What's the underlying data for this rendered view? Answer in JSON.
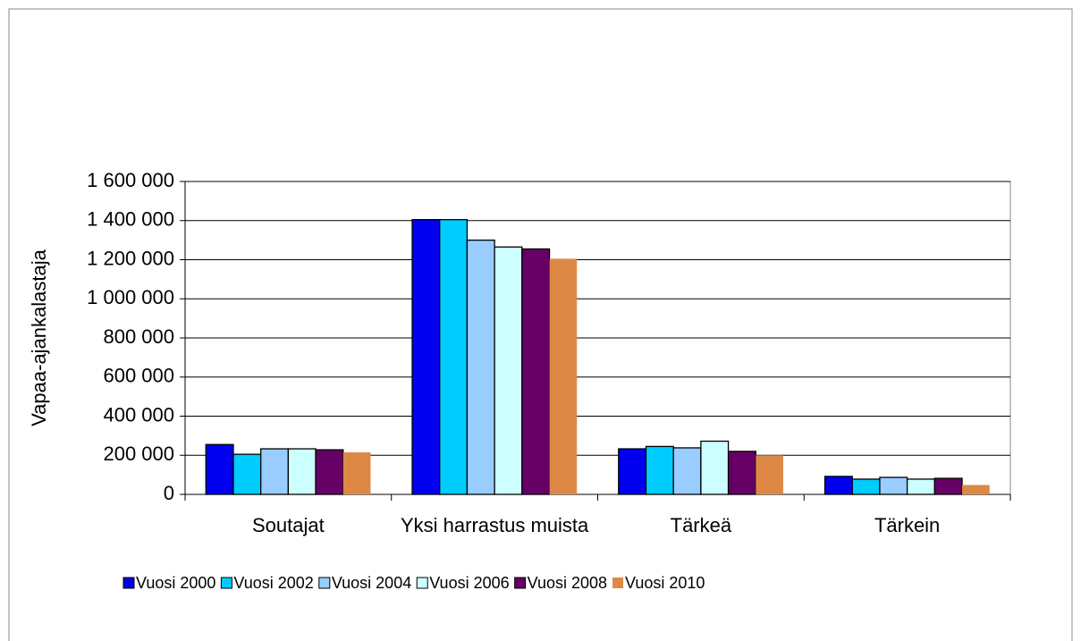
{
  "chart_data": {
    "type": "bar",
    "y_label": "Vapaa-ajankalastaja",
    "categories": [
      "Soutajat",
      "Yksi harrastus muista",
      "Tärkeä",
      "Tärkein"
    ],
    "series": [
      {
        "name": "Vuosi 2000",
        "color": "#0000ee",
        "values": [
          255000,
          1405000,
          233000,
          92000
        ]
      },
      {
        "name": "Vuosi 2002",
        "color": "#00ccff",
        "values": [
          205000,
          1405000,
          245000,
          78000
        ]
      },
      {
        "name": "Vuosi 2004",
        "color": "#99ccff",
        "values": [
          233000,
          1300000,
          238000,
          87000
        ]
      },
      {
        "name": "Vuosi 2006",
        "color": "#ccffff",
        "values": [
          233000,
          1265000,
          272000,
          78000
        ]
      },
      {
        "name": "Vuosi 2008",
        "color": "#660066",
        "values": [
          228000,
          1255000,
          220000,
          82000
        ]
      },
      {
        "name": "Vuosi 2010",
        "color": "#dd8844",
        "values": [
          215000,
          1205000,
          200000,
          48000
        ]
      }
    ],
    "ylim": [
      0,
      1600000
    ],
    "yticks": [
      0,
      {
        "value": 200000,
        "label": "200 000"
      },
      {
        "value": 400000,
        "label": "400 000"
      },
      {
        "value": 600000,
        "label": "600 000"
      },
      {
        "value": 800000,
        "label": "800 000"
      },
      {
        "value": 1000000,
        "label": "1 000 000"
      },
      {
        "value": 1200000,
        "label": "1 200 000"
      },
      {
        "value": 1400000,
        "label": "1 400 000"
      },
      {
        "value": 1600000,
        "label": "1 600 000"
      }
    ],
    "grid": true,
    "legend": "bottom"
  }
}
